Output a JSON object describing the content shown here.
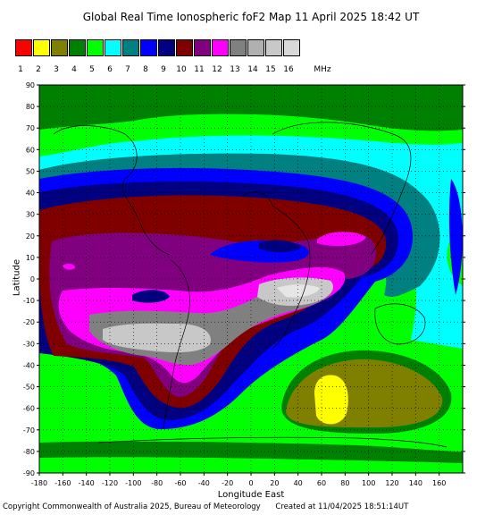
{
  "title": "Global Real Time Ionospheric foF2 Map   11 April 2025 18:42 UT",
  "legend": {
    "colors": [
      "#ff0000",
      "#ffff00",
      "#808000",
      "#008000",
      "#00ff00",
      "#00ffff",
      "#008080",
      "#0000ff",
      "#000080",
      "#800000",
      "#800080",
      "#ff00ff",
      "#808080",
      "#b0b0b0",
      "#c8c8c8",
      "#d8d8d8"
    ],
    "labels": [
      "1",
      "2",
      "3",
      "4",
      "5",
      "6",
      "7",
      "8",
      "9",
      "10",
      "11",
      "12",
      "13",
      "14",
      "15",
      "16"
    ],
    "unit": "MHz"
  },
  "axes": {
    "xlabel": "Longitude East",
    "ylabel": "Latitude",
    "xticks": [
      "-180",
      "-160",
      "-140",
      "-120",
      "-100",
      "-80",
      "-60",
      "-40",
      "-20",
      "0",
      "20",
      "40",
      "60",
      "80",
      "100",
      "120",
      "140",
      "160"
    ],
    "yticks": [
      "90",
      "80",
      "70",
      "60",
      "50",
      "40",
      "30",
      "20",
      "10",
      "0",
      "-10",
      "-20",
      "-30",
      "-40",
      "-50",
      "-60",
      "-70",
      "-80",
      "-90"
    ],
    "xlim": [
      -180,
      180
    ],
    "ylim": [
      -90,
      90
    ],
    "grid": true
  },
  "footer": {
    "copyright": "Copyright Commonwealth of Australia 2025, Bureau of Meteorology",
    "created": "Created at 11/04/2025 18:51:14UT"
  }
}
